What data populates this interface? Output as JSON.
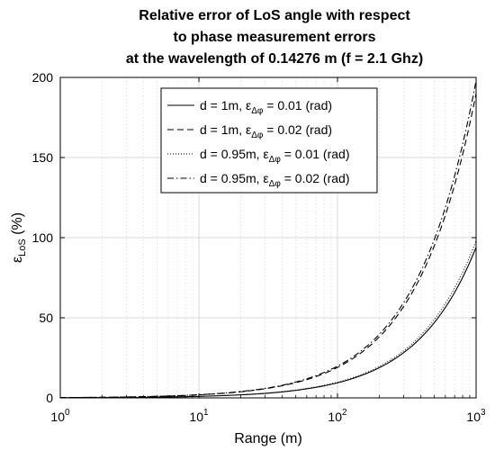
{
  "chart_data": {
    "type": "line",
    "title_lines": [
      "Relative error of LoS angle with respect",
      "to phase measurement errors",
      "at the wavelength of 0.14276 m (f = 2.1 Ghz)"
    ],
    "xlabel": "Range (m)",
    "ylabel": {
      "base": "ε",
      "sub": "LoS",
      "rest": " (%)"
    },
    "xscale": "log",
    "xlim": [
      1,
      1000
    ],
    "ylim": [
      0,
      200
    ],
    "x_ticks": [
      {
        "value": 1,
        "base": "10",
        "exp": "0"
      },
      {
        "value": 10,
        "base": "10",
        "exp": "1"
      },
      {
        "value": 100,
        "base": "10",
        "exp": "2"
      },
      {
        "value": 1000,
        "base": "10",
        "exp": "3"
      }
    ],
    "y_ticks": [
      0,
      50,
      100,
      150,
      200
    ],
    "grid": true,
    "legend_position": "top-center",
    "x": [
      1,
      2,
      5,
      10,
      20,
      30,
      50,
      70,
      100,
      150,
      200,
      300,
      400,
      500,
      600,
      700,
      800,
      900,
      1000
    ],
    "series": [
      {
        "name": "d = 1m, ε_Δφ = 0.01 (rad)",
        "legend": {
          "pre": "d = 1m, ε",
          "sub": "Δφ",
          "post": " = 0.01 (rad)"
        },
        "style": "solid",
        "values": [
          0.09,
          0.19,
          0.47,
          0.94,
          1.9,
          2.8,
          4.7,
          6.6,
          9.4,
          14.1,
          18.8,
          28.2,
          37.6,
          47.0,
          56.4,
          65.8,
          75.2,
          84.6,
          94.0
        ]
      },
      {
        "name": "d = 1m, ε_Δφ = 0.02 (rad)",
        "legend": {
          "pre": "d = 1m, ε",
          "sub": "Δφ",
          "post": " = 0.02 (rad)"
        },
        "style": "dashed",
        "values": [
          0.19,
          0.38,
          0.95,
          1.9,
          3.8,
          5.7,
          9.5,
          13.3,
          19.0,
          28.5,
          38.0,
          57.0,
          76.0,
          95.0,
          114.0,
          133.0,
          152.0,
          171.0,
          190.0
        ]
      },
      {
        "name": "d = 0.95m, ε_Δφ = 0.01 (rad)",
        "legend": {
          "pre": "d = 0.95m, ε",
          "sub": "Δφ",
          "post": " = 0.01 (rad)"
        },
        "style": "dotted",
        "values": [
          0.1,
          0.2,
          0.49,
          0.98,
          2.0,
          2.9,
          4.9,
          6.9,
          9.8,
          14.7,
          19.6,
          29.4,
          39.2,
          49.0,
          58.8,
          68.6,
          78.4,
          88.2,
          98.0
        ]
      },
      {
        "name": "d = 0.95m, ε_Δφ = 0.02 (rad)",
        "legend": {
          "pre": "d = 0.95m, ε",
          "sub": "Δφ",
          "post": " = 0.02 (rad)"
        },
        "style": "dashdot",
        "values": [
          0.2,
          0.4,
          0.99,
          1.98,
          4.0,
          5.9,
          9.9,
          13.9,
          19.8,
          29.7,
          39.6,
          59.4,
          79.2,
          99.0,
          118.8,
          138.6,
          158.4,
          178.2,
          198.0
        ]
      }
    ]
  }
}
